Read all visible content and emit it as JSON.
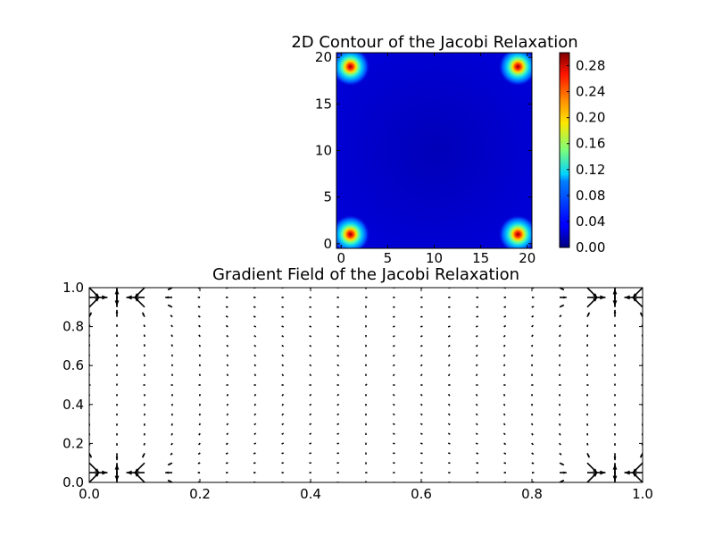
{
  "chart_data": [
    {
      "type": "heatmap",
      "title": "2D Contour of the Jacobi Relaxation",
      "xlabel": "",
      "ylabel": "",
      "xlim": [
        -0.5,
        20.5
      ],
      "ylim": [
        -0.5,
        20.5
      ],
      "x_ticks": [
        0,
        5,
        10,
        15,
        20
      ],
      "y_ticks": [
        0,
        5,
        10,
        15,
        20
      ],
      "colormap": "jet",
      "colorbar": {
        "range": [
          0.0,
          0.3
        ],
        "ticks": [
          "0.00",
          "0.04",
          "0.08",
          "0.12",
          "0.16",
          "0.20",
          "0.24",
          "0.28"
        ]
      },
      "background_value": 0.01,
      "hotspots": [
        {
          "x": 1,
          "y": 1,
          "peak": 0.3
        },
        {
          "x": 19,
          "y": 1,
          "peak": 0.3
        },
        {
          "x": 1,
          "y": 19,
          "peak": 0.3
        },
        {
          "x": 19,
          "y": 19,
          "peak": 0.3
        }
      ]
    },
    {
      "type": "quiver",
      "title": "Gradient Field of the Jacobi Relaxation",
      "xlabel": "",
      "ylabel": "",
      "xlim": [
        0.0,
        1.0
      ],
      "ylim": [
        0.0,
        1.0
      ],
      "x_ticks": [
        "0.0",
        "0.2",
        "0.4",
        "0.6",
        "0.8",
        "1.0"
      ],
      "y_ticks": [
        "0.0",
        "0.2",
        "0.4",
        "0.6",
        "0.8",
        "1.0"
      ],
      "grid_size": 21,
      "description_pattern": "gradient strongest near the four corner sources, near-zero in the interior"
    }
  ]
}
